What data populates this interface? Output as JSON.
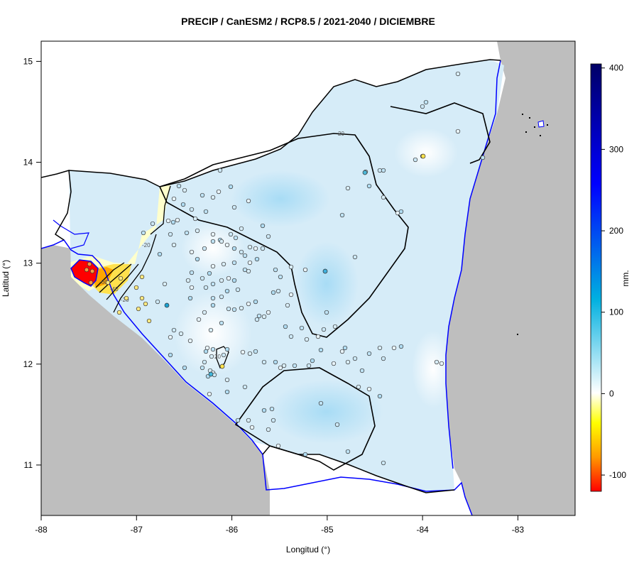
{
  "title": "PRECIP / CanESM2 / RCP8.5 / 2021-2040 / DICIEMBRE",
  "xlabel": "Longitud (°)",
  "ylabel": "Latitud (°)",
  "colorbar": {
    "unit_label": "mm.",
    "ticks": [
      "400",
      "300",
      "200",
      "100",
      "0",
      "-100"
    ],
    "range": [
      -120,
      405
    ],
    "colors": [
      "#ff0000",
      "#ff9900",
      "#ffff00",
      "#ffffff",
      "#00b0e0",
      "#0000ff",
      "#000066"
    ]
  },
  "map": {
    "x_ticks": [
      "-88",
      "-87",
      "-86",
      "-85",
      "-84",
      "-83"
    ],
    "y_ticks": [
      "15",
      "14",
      "13",
      "12",
      "11"
    ],
    "xlim": [
      -88,
      -82.4
    ],
    "ylim": [
      10.5,
      15.2
    ],
    "land_color": "#bebebe",
    "coast_color": "#0000ff",
    "contour_labels": [
      "20",
      "20",
      "-60",
      "-40",
      "-20",
      "-20"
    ]
  },
  "chart_data": {
    "type": "heatmap",
    "title": "PRECIP / CanESM2 / RCP8.5 / 2021-2040 / DICIEMBRE",
    "xlabel": "Longitud (°)",
    "ylabel": "Latitud (°)",
    "xlim": [
      -88,
      -82.4
    ],
    "ylim": [
      10.5,
      15.2
    ],
    "colorbar_label": "mm.",
    "colorbar_range": [
      -120,
      405
    ],
    "contour_levels": [
      -60,
      -40,
      -20,
      20
    ]
  }
}
